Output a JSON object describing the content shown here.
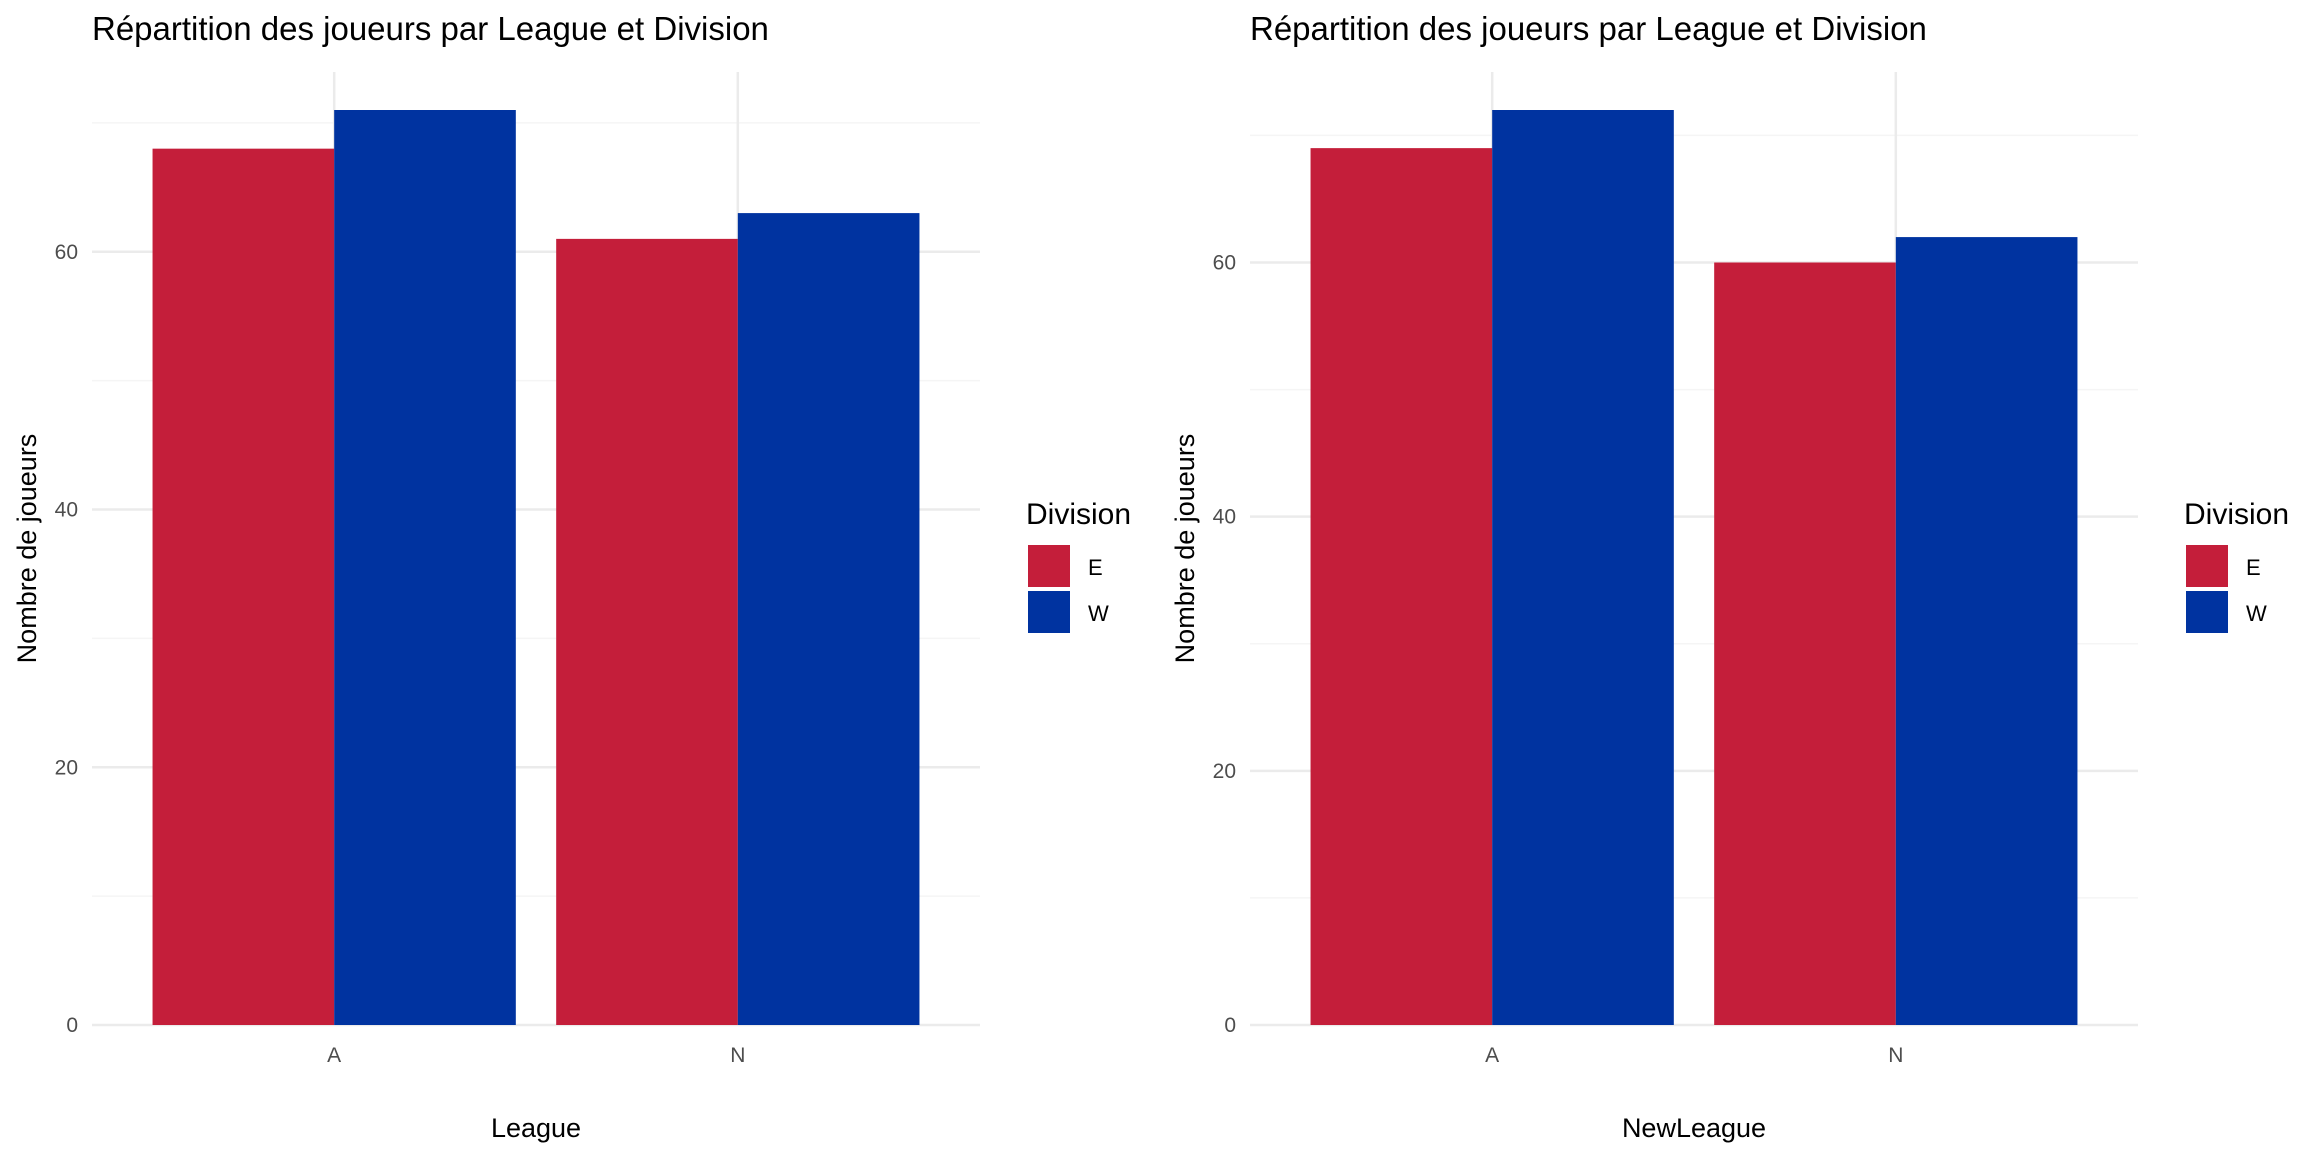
{
  "colors": {
    "E": "#C41E3A",
    "W": "#0033A0",
    "grid_major": "#ebebeb",
    "grid_minor": "#f5f5f5",
    "tick_label": "#4d4d4d"
  },
  "chart_data": [
    {
      "type": "bar",
      "title": "Répartition des joueurs par League et Division",
      "xlabel": "League",
      "ylabel": "Nombre de joueurs",
      "categories": [
        "A",
        "N"
      ],
      "series": [
        {
          "name": "E",
          "values": [
            68,
            61
          ]
        },
        {
          "name": "W",
          "values": [
            71,
            63
          ]
        }
      ],
      "ylim": [
        0,
        71
      ],
      "yticks": [
        0,
        20,
        40,
        60
      ],
      "legend_title": "Division",
      "legend_position": "right",
      "grid": true
    },
    {
      "type": "bar",
      "title": "Répartition des joueurs par League et Division",
      "xlabel": "NewLeague",
      "ylabel": "Nombre de joueurs",
      "categories": [
        "A",
        "N"
      ],
      "series": [
        {
          "name": "E",
          "values": [
            69,
            60
          ]
        },
        {
          "name": "W",
          "values": [
            72,
            62
          ]
        }
      ],
      "ylim": [
        0,
        72
      ],
      "yticks": [
        0,
        20,
        40,
        60
      ],
      "legend_title": "Division",
      "legend_position": "right",
      "grid": true
    }
  ]
}
